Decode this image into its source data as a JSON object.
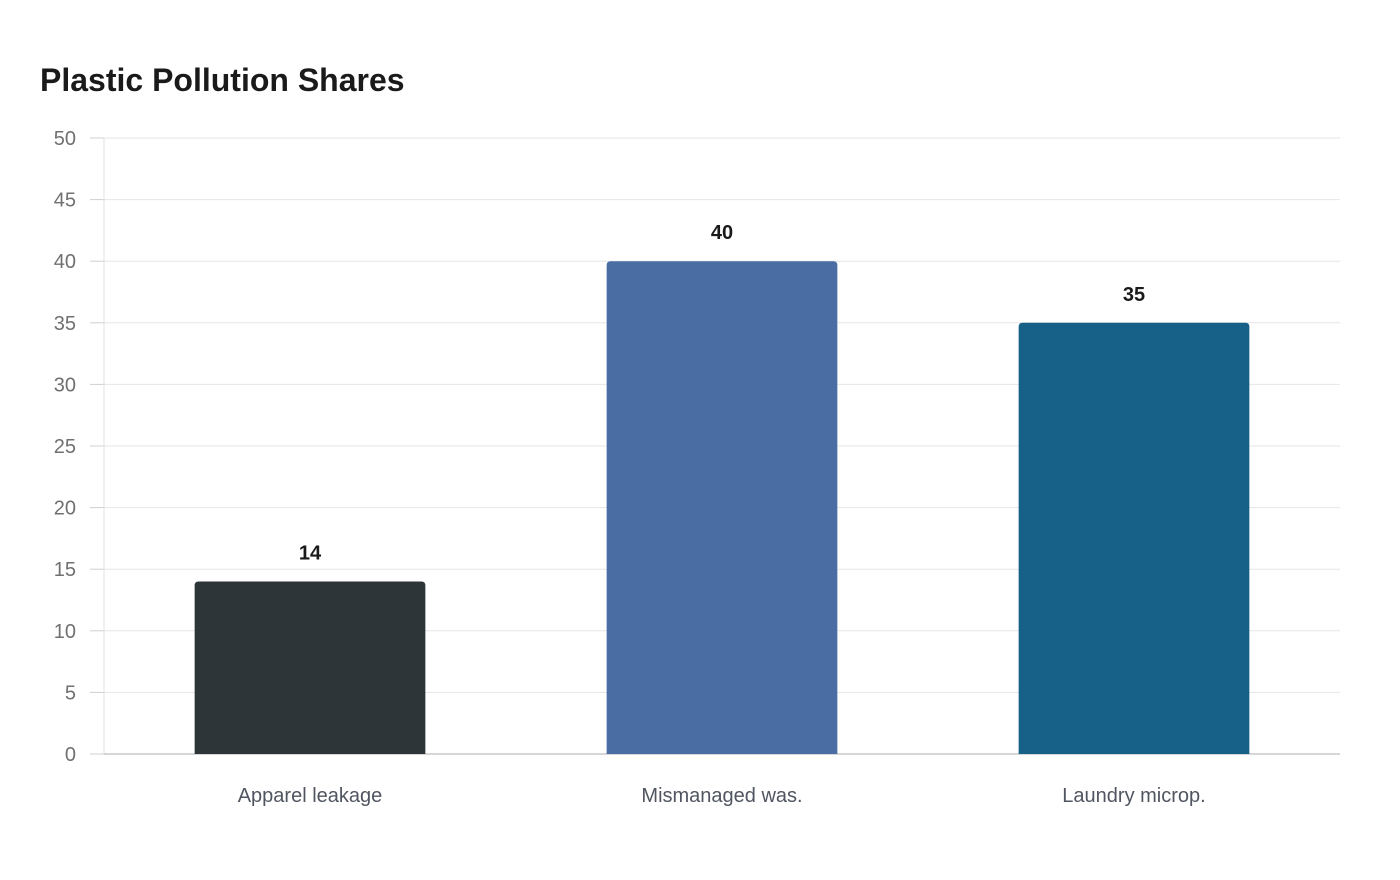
{
  "chart_data": {
    "type": "bar",
    "title": "Plastic Pollution Shares",
    "xlabel": "",
    "ylabel": "",
    "categories": [
      "Apparel leakage",
      "Mismanaged was.",
      "Laundry microp."
    ],
    "values": [
      14,
      40,
      35
    ],
    "colors": [
      "#2e3538",
      "#4a6ea3",
      "#176087"
    ],
    "ylim": [
      0,
      50
    ],
    "yticks": [
      0,
      5,
      10,
      15,
      20,
      25,
      30,
      35,
      40,
      45,
      50
    ],
    "grid": true,
    "legend": "none",
    "data_labels": true
  }
}
